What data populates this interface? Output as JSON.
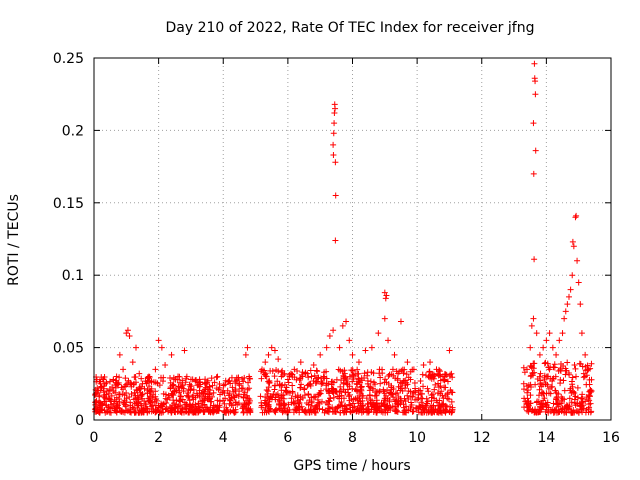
{
  "chart_data": {
    "type": "scatter",
    "title": "Day 210 of 2022, Rate Of TEC Index for receiver jfng",
    "xlabel": "GPS time / hours",
    "ylabel": "ROTI / TECUs",
    "xlim": [
      0,
      16
    ],
    "ylim": [
      0,
      0.25
    ],
    "xticks": [
      0,
      2,
      4,
      6,
      8,
      10,
      12,
      14,
      16
    ],
    "yticks": [
      0,
      0.05,
      0.1,
      0.15,
      0.2,
      0.25
    ],
    "xtick_labels": [
      "0",
      "2",
      "4",
      "6",
      "8",
      "10",
      "12",
      "14",
      "16"
    ],
    "ytick_labels": [
      "0",
      "0.05",
      "0.1",
      "0.15",
      "0.2",
      "0.25"
    ],
    "grid": true,
    "marker": "+",
    "color": "#ff0000",
    "series": [
      {
        "name": "ROTI",
        "points": [
          [
            0.05,
            0.018
          ],
          [
            0.1,
            0.022
          ],
          [
            0.15,
            0.012
          ],
          [
            0.2,
            0.025
          ],
          [
            0.3,
            0.016
          ],
          [
            0.4,
            0.02
          ],
          [
            0.5,
            0.014
          ],
          [
            0.6,
            0.028
          ],
          [
            0.7,
            0.03
          ],
          [
            0.8,
            0.045
          ],
          [
            0.9,
            0.035
          ],
          [
            1.0,
            0.06
          ],
          [
            1.05,
            0.062
          ],
          [
            1.1,
            0.058
          ],
          [
            1.2,
            0.04
          ],
          [
            1.3,
            0.05
          ],
          [
            1.4,
            0.032
          ],
          [
            1.5,
            0.025
          ],
          [
            1.7,
            0.03
          ],
          [
            1.9,
            0.035
          ],
          [
            2.0,
            0.055
          ],
          [
            2.1,
            0.05
          ],
          [
            2.2,
            0.038
          ],
          [
            2.4,
            0.045
          ],
          [
            2.6,
            0.03
          ],
          [
            2.8,
            0.048
          ],
          [
            3.0,
            0.028
          ],
          [
            3.2,
            0.024
          ],
          [
            3.5,
            0.026
          ],
          [
            3.8,
            0.022
          ],
          [
            4.0,
            0.02
          ],
          [
            4.2,
            0.018
          ],
          [
            4.5,
            0.024
          ],
          [
            4.7,
            0.045
          ],
          [
            4.75,
            0.05
          ],
          [
            4.8,
            0.03
          ],
          [
            5.2,
            0.035
          ],
          [
            5.3,
            0.04
          ],
          [
            5.4,
            0.045
          ],
          [
            5.5,
            0.05
          ],
          [
            5.6,
            0.048
          ],
          [
            5.7,
            0.042
          ],
          [
            5.8,
            0.03
          ],
          [
            6.0,
            0.028
          ],
          [
            6.2,
            0.035
          ],
          [
            6.4,
            0.04
          ],
          [
            6.6,
            0.032
          ],
          [
            6.8,
            0.038
          ],
          [
            7.0,
            0.045
          ],
          [
            7.2,
            0.05
          ],
          [
            7.3,
            0.058
          ],
          [
            7.4,
            0.062
          ],
          [
            7.45,
            0.218
          ],
          [
            7.46,
            0.215
          ],
          [
            7.44,
            0.212
          ],
          [
            7.43,
            0.205
          ],
          [
            7.42,
            0.198
          ],
          [
            7.4,
            0.19
          ],
          [
            7.41,
            0.183
          ],
          [
            7.47,
            0.178
          ],
          [
            7.48,
            0.155
          ],
          [
            7.47,
            0.124
          ],
          [
            7.6,
            0.05
          ],
          [
            7.7,
            0.065
          ],
          [
            7.8,
            0.068
          ],
          [
            7.9,
            0.055
          ],
          [
            8.0,
            0.045
          ],
          [
            8.2,
            0.04
          ],
          [
            8.4,
            0.048
          ],
          [
            8.6,
            0.05
          ],
          [
            8.8,
            0.06
          ],
          [
            9.0,
            0.088
          ],
          [
            9.05,
            0.086
          ],
          [
            9.03,
            0.084
          ],
          [
            9.0,
            0.07
          ],
          [
            9.1,
            0.055
          ],
          [
            9.3,
            0.045
          ],
          [
            9.5,
            0.068
          ],
          [
            9.7,
            0.04
          ],
          [
            9.9,
            0.035
          ],
          [
            10.2,
            0.038
          ],
          [
            10.4,
            0.04
          ],
          [
            10.6,
            0.035
          ],
          [
            10.8,
            0.03
          ],
          [
            11.0,
            0.048
          ],
          [
            13.3,
            0.025
          ],
          [
            13.4,
            0.035
          ],
          [
            13.5,
            0.05
          ],
          [
            13.55,
            0.065
          ],
          [
            13.6,
            0.07
          ],
          [
            13.62,
            0.111
          ],
          [
            13.63,
            0.246
          ],
          [
            13.64,
            0.236
          ],
          [
            13.65,
            0.234
          ],
          [
            13.66,
            0.225
          ],
          [
            13.6,
            0.205
          ],
          [
            13.67,
            0.186
          ],
          [
            13.61,
            0.17
          ],
          [
            13.7,
            0.06
          ],
          [
            13.8,
            0.045
          ],
          [
            13.9,
            0.05
          ],
          [
            14.0,
            0.055
          ],
          [
            14.1,
            0.06
          ],
          [
            14.2,
            0.05
          ],
          [
            14.3,
            0.045
          ],
          [
            14.4,
            0.055
          ],
          [
            14.5,
            0.06
          ],
          [
            14.55,
            0.07
          ],
          [
            14.6,
            0.075
          ],
          [
            14.65,
            0.08
          ],
          [
            14.7,
            0.085
          ],
          [
            14.75,
            0.09
          ],
          [
            14.8,
            0.1
          ],
          [
            14.82,
            0.123
          ],
          [
            14.85,
            0.12
          ],
          [
            14.9,
            0.14
          ],
          [
            14.92,
            0.141
          ],
          [
            14.95,
            0.11
          ],
          [
            15.0,
            0.095
          ],
          [
            15.05,
            0.08
          ],
          [
            15.1,
            0.06
          ],
          [
            15.2,
            0.045
          ],
          [
            15.3,
            0.035
          ],
          [
            15.4,
            0.02
          ]
        ],
        "dense_bands": [
          {
            "x": [
              0,
              4.85
            ],
            "y": [
              0.005,
              0.03
            ]
          },
          {
            "x": [
              5.15,
              11.1
            ],
            "y": [
              0.005,
              0.035
            ]
          },
          {
            "x": [
              13.3,
              15.4
            ],
            "y": [
              0.005,
              0.04
            ]
          }
        ]
      }
    ]
  }
}
